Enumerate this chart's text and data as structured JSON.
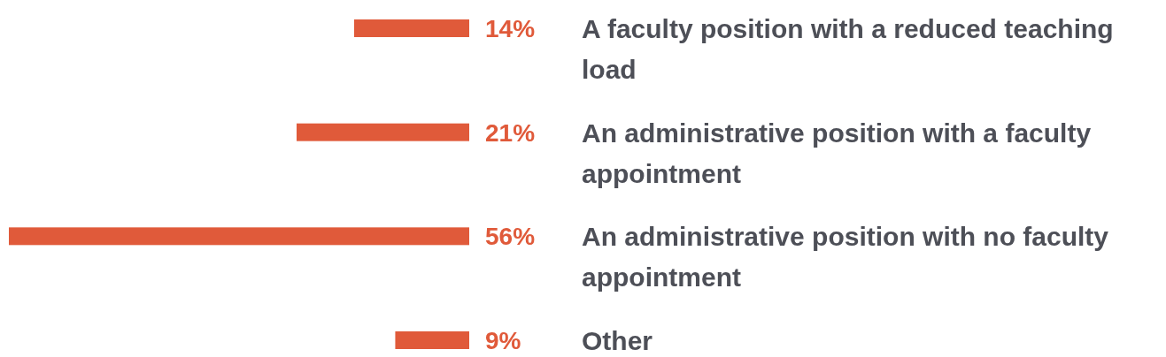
{
  "chart_data": {
    "type": "bar",
    "orientation": "horizontal",
    "categories": [
      "A faculty position with a reduced teaching load",
      "An administrative position with a faculty appointment",
      "An administrative position with no faculty appointment",
      "Other"
    ],
    "values": [
      14,
      21,
      56,
      9
    ],
    "color": "#e05a3a",
    "value_labels": [
      "14%",
      "21%",
      "56%",
      "9%"
    ]
  }
}
